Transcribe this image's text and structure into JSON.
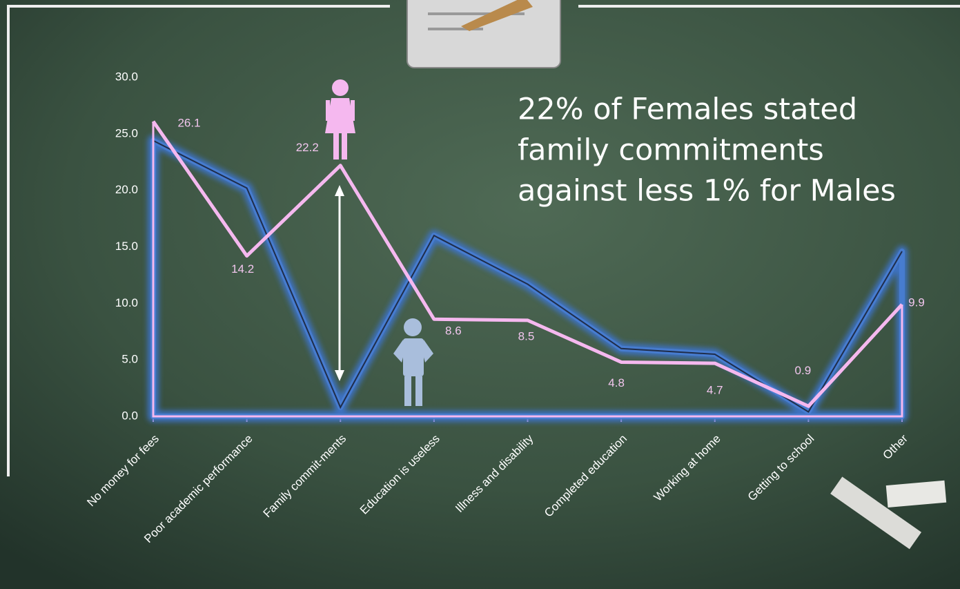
{
  "chart_data": {
    "type": "line",
    "categories": [
      "No money for fees",
      "Poor academic performance",
      "Family commit-ments",
      "Education is useless",
      "Illness and disability",
      "Completed education",
      "Working at home",
      "Getting to school",
      "Other"
    ],
    "series": [
      {
        "color": "#1f2d4a",
        "values": [
          24.4,
          20.2,
          0.8,
          16.0,
          11.7,
          6.0,
          5.5,
          0.4,
          14.6
        ]
      },
      {
        "color": "#f5b8ef",
        "values": [
          26.1,
          14.2,
          22.2,
          8.6,
          8.5,
          4.8,
          4.7,
          0.9,
          9.9
        ]
      }
    ],
    "ylim": [
      0,
      30
    ],
    "yticks": [
      {
        "value": 0,
        "label": "0.0"
      },
      {
        "value": 5,
        "label": "5.0"
      },
      {
        "value": 10,
        "label": "10.0"
      },
      {
        "value": 15,
        "label": "15.0"
      },
      {
        "value": 20,
        "label": "20.0"
      },
      {
        "value": 25,
        "label": "25.0"
      },
      {
        "value": 30,
        "label": "30.0"
      }
    ],
    "annotation": [
      "22% of Females stated",
      "family commitments",
      "against less 1% for Males"
    ]
  }
}
